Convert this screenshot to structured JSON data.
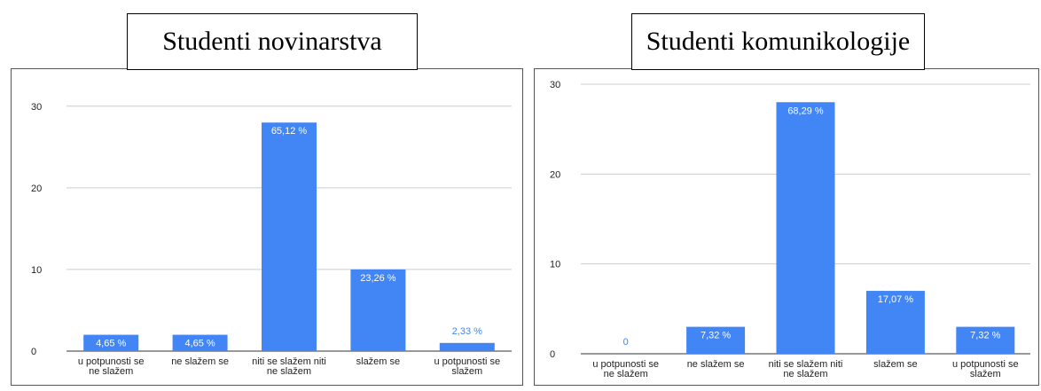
{
  "chart_data": [
    {
      "type": "bar",
      "title": "Studenti novinarstva",
      "categories": [
        "u potpunosti se\nne slažem",
        "ne slažem se",
        "niti se slažem niti\nne slažem",
        "slažem se",
        "u potpunosti se\nslažem"
      ],
      "values": [
        2,
        2,
        28,
        10,
        1
      ],
      "data_labels": [
        "4,65 %",
        "4,65 %",
        "65,12 %",
        "23,26 %",
        "2,33 %"
      ],
      "y_ticks": [
        0,
        10,
        20,
        30
      ],
      "ylim": [
        0,
        31.5
      ],
      "grid": true,
      "bar_color": "#4285f4"
    },
    {
      "type": "bar",
      "title": "Studenti komunikologije",
      "categories": [
        "u potpunosti se\nne slažem",
        "ne slažem se",
        "niti se slažem niti\nne slažem",
        "slažem se",
        "u potpunosti se\nslažem"
      ],
      "values": [
        0,
        3,
        28,
        7,
        3
      ],
      "data_labels": [
        "0",
        "7,32 %",
        "68,29 %",
        "17,07 %",
        "7,32 %"
      ],
      "y_ticks": [
        0,
        10,
        20,
        30
      ],
      "ylim": [
        0,
        30
      ],
      "grid": true,
      "bar_color": "#4285f4"
    }
  ]
}
